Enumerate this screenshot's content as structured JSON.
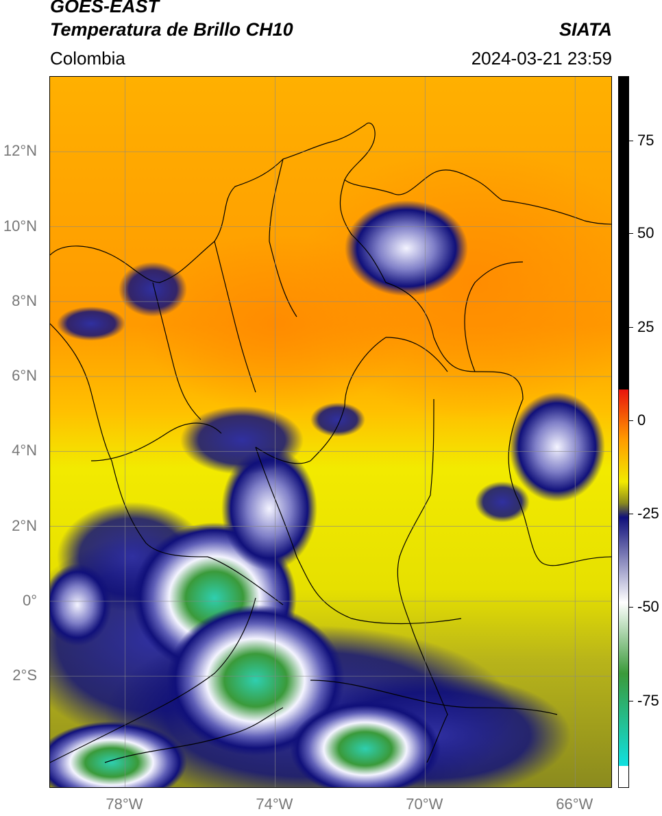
{
  "header": {
    "title_line1": "GOES-EAST",
    "title_line2": "Temperatura de Brillo CH10",
    "organization": "SIATA",
    "region": "Colombia",
    "timestamp": "2024-03-21 23:59"
  },
  "map": {
    "lat_labels": [
      "12°N",
      "10°N",
      "8°N",
      "6°N",
      "4°N",
      "2°N",
      "0°",
      "2°S"
    ],
    "lon_labels": [
      "78°W",
      "74°W",
      "70°W",
      "66°W"
    ],
    "extent": {
      "lon_min": -80,
      "lon_max": -65,
      "lat_min": -5,
      "lat_max": 14
    }
  },
  "colorbar": {
    "tick_labels": [
      "75",
      "50",
      "25",
      "0",
      "-25",
      "-50",
      "-75"
    ],
    "colors": {
      "black": "#000000",
      "red": "#e8140c",
      "orange": "#ff9a00",
      "yellow": "#f2ea00",
      "olive": "#8a8a1e",
      "navy": "#10107a",
      "white": "#ffffff",
      "green": "#3a9a3a",
      "cyan": "#10e0e0"
    }
  }
}
